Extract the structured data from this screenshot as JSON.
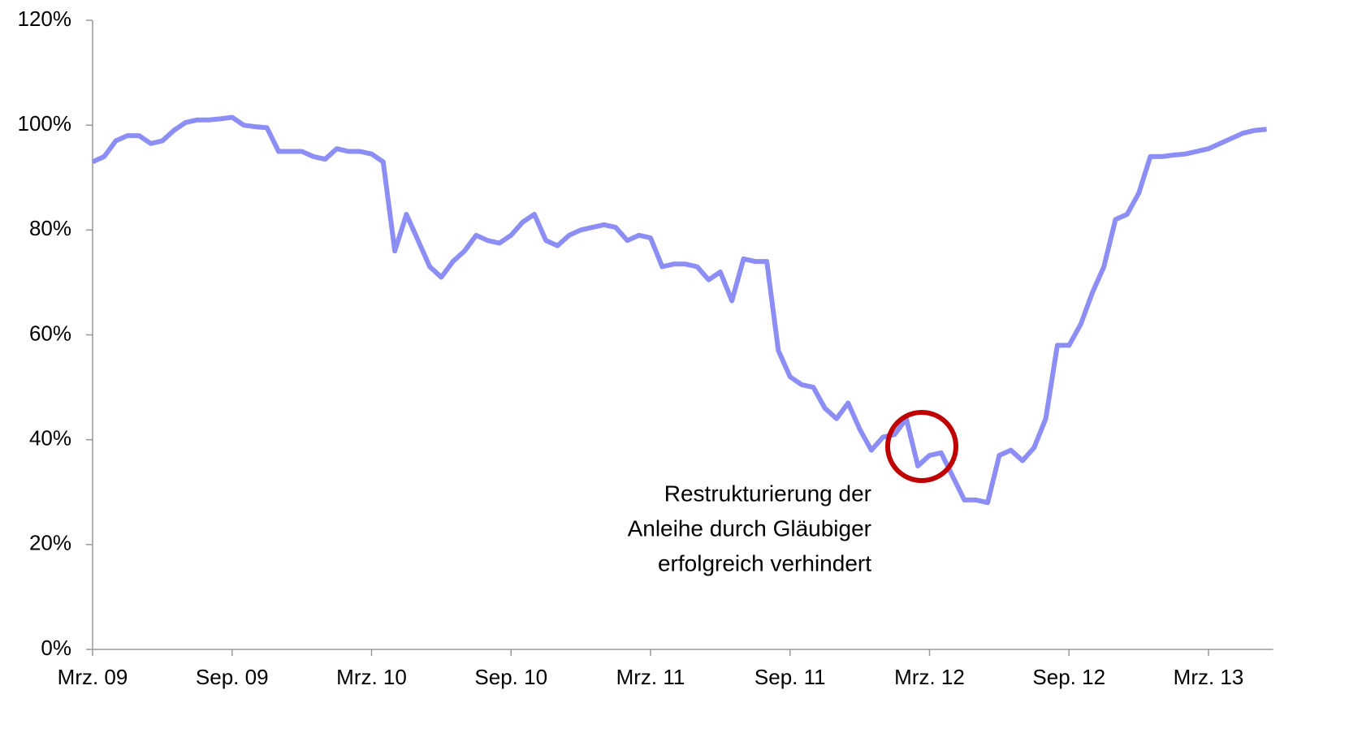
{
  "chart_data": {
    "type": "line",
    "categories": [
      "Mrz. 09",
      null,
      null,
      null,
      null,
      null,
      null,
      null,
      null,
      null,
      null,
      null,
      "Sep. 09",
      null,
      null,
      null,
      null,
      null,
      null,
      null,
      null,
      null,
      null,
      null,
      "Mrz. 10",
      null,
      null,
      null,
      null,
      null,
      null,
      null,
      null,
      null,
      null,
      null,
      "Sep. 10",
      null,
      null,
      null,
      null,
      null,
      null,
      null,
      null,
      null,
      null,
      null,
      "Mrz. 11",
      null,
      null,
      null,
      null,
      null,
      null,
      null,
      null,
      null,
      null,
      null,
      "Sep. 11",
      null,
      null,
      null,
      null,
      null,
      null,
      null,
      null,
      null,
      null,
      null,
      "Mrz. 12",
      null,
      null,
      null,
      null,
      null,
      null,
      null,
      null,
      null,
      null,
      null,
      "Sep. 12",
      null,
      null,
      null,
      null,
      null,
      null,
      null,
      null,
      null,
      null,
      null,
      "Mrz. 13",
      null,
      null,
      null,
      null,
      null
    ],
    "values": [
      93,
      94,
      97,
      98,
      98,
      96.5,
      97,
      99,
      100.5,
      101,
      101,
      101.2,
      101.5,
      100,
      99.7,
      99.5,
      95,
      95,
      95,
      94,
      93.5,
      95.5,
      95,
      95,
      94.5,
      93,
      76,
      83,
      78,
      73,
      71,
      74,
      76,
      79,
      78,
      77.5,
      79,
      81.5,
      83,
      78,
      77,
      79,
      80,
      80.5,
      81,
      80.5,
      78,
      79,
      78.5,
      73,
      73.5,
      73.5,
      73,
      70.5,
      72,
      66.5,
      74.5,
      74,
      74,
      57,
      52,
      50.5,
      50,
      46,
      44,
      47,
      42,
      38,
      40.5,
      41,
      44,
      35,
      37,
      37.5,
      33,
      28.5,
      28.5,
      28,
      37,
      38,
      36,
      38.5,
      44,
      58,
      58,
      62,
      68,
      73,
      82,
      83,
      87,
      94,
      94,
      94.3,
      94.5,
      95,
      95.5,
      96.5,
      97.5,
      98.5,
      99,
      99.2
    ],
    "color": "#8c8ef5",
    "ylim": [
      0,
      120
    ],
    "yticks": [
      {
        "value": 0,
        "label": "0%"
      },
      {
        "value": 20,
        "label": "20%"
      },
      {
        "value": 40,
        "label": "40%"
      },
      {
        "value": 60,
        "label": "60%"
      },
      {
        "value": 80,
        "label": "80%"
      },
      {
        "value": 100,
        "label": "100%"
      },
      {
        "value": 120,
        "label": "120%"
      }
    ],
    "annotation": [
      "Restrukturierung der",
      "Anleihe durch Gläubiger",
      "erfolgreich verhindert"
    ]
  }
}
